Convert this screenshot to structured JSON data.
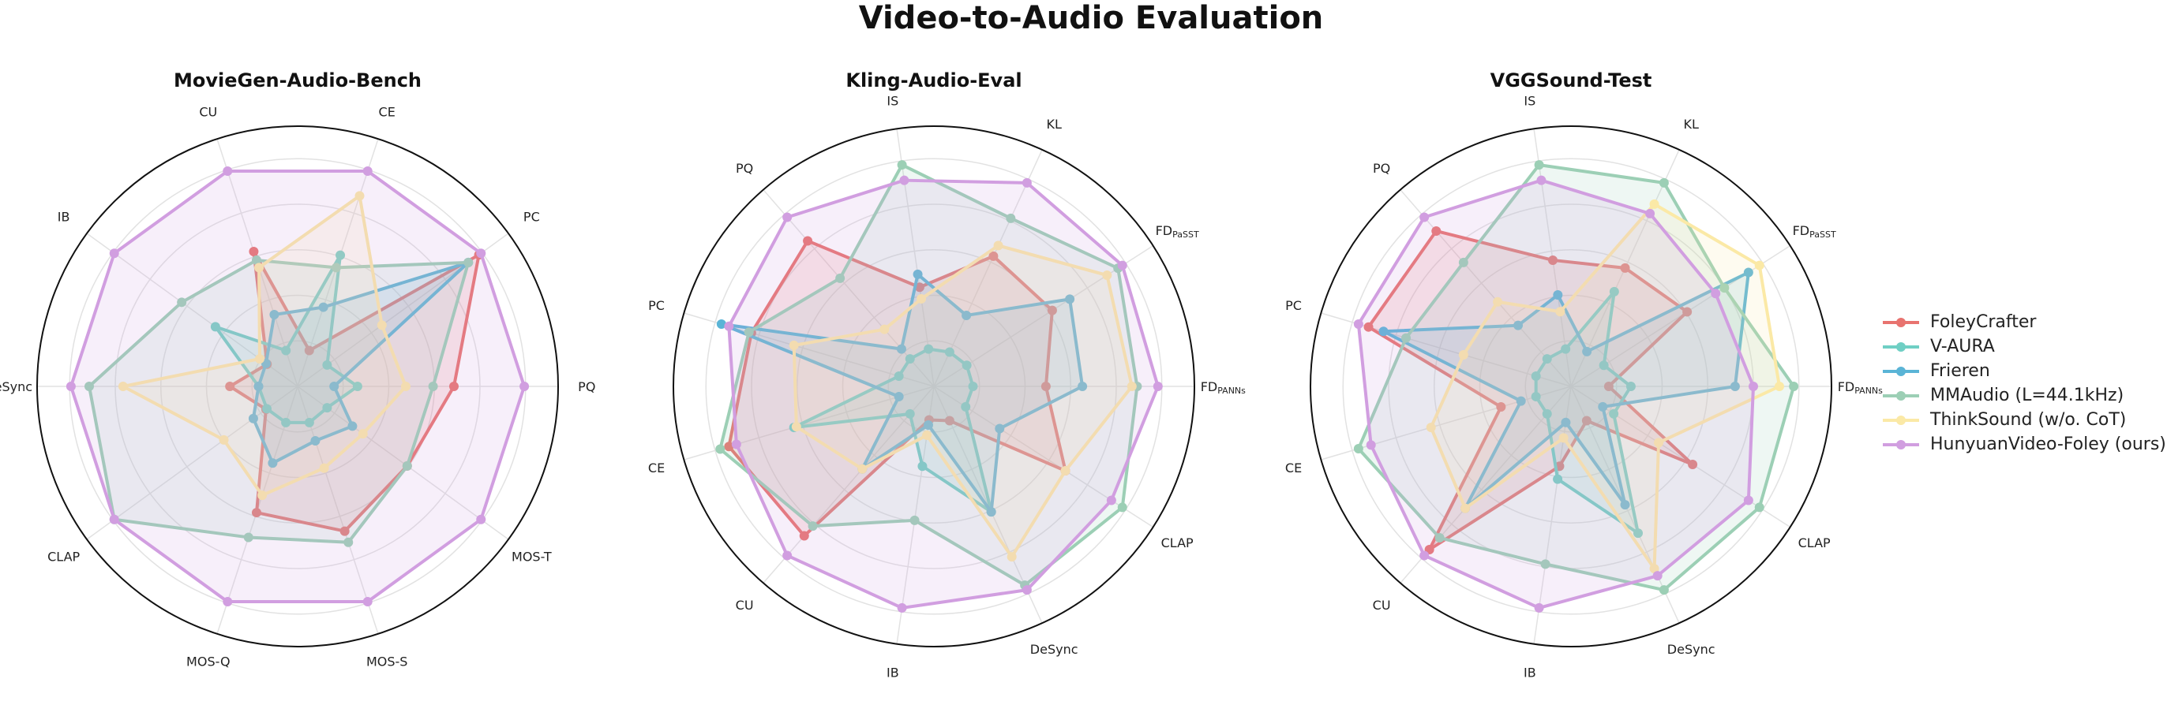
{
  "title": "Video-to-Audio Evaluation",
  "legend": [
    {
      "name": "FoleyCrafter",
      "color": "#e8736f"
    },
    {
      "name": "V-AURA",
      "color": "#6fcfc4"
    },
    {
      "name": "Frieren",
      "color": "#5ab4d6"
    },
    {
      "name": "MMAudio (L=44.1kHz)",
      "color": "#9ccfb5"
    },
    {
      "name": "ThinkSound (w/o. CoT)",
      "color": "#fbe9a6"
    },
    {
      "name": "HunyuanVideo-Foley (ours)",
      "color": "#d19ee0"
    }
  ],
  "chart_data": [
    {
      "type": "radar",
      "title": "MovieGen-Audio-Bench",
      "axes": [
        {
          "text": "PQ"
        },
        {
          "text": "PC"
        },
        {
          "text": "CE"
        },
        {
          "text": "CU"
        },
        {
          "text": "IB"
        },
        {
          "text": "DeSync"
        },
        {
          "text": "CLAP"
        },
        {
          "text": "MOS-Q"
        },
        {
          "text": "MOS-S"
        },
        {
          "text": "MOS-T"
        }
      ],
      "rlim": [
        0,
        1
      ],
      "grid": true,
      "series": [
        {
          "name": "FoleyCrafter",
          "values": [
            0.6,
            0.86,
            0.145,
            0.545,
            0.145,
            0.26,
            0.15,
            0.51,
            0.585,
            0.52
          ]
        },
        {
          "name": "V-AURA",
          "values": [
            0.23,
            0.14,
            0.53,
            0.145,
            0.39,
            0.15,
            0.146,
            0.146,
            0.146,
            0.14
          ]
        },
        {
          "name": "Frieren",
          "values": [
            0.14,
            0.81,
            0.32,
            0.29,
            0.15,
            0.15,
            0.21,
            0.31,
            0.22,
            0.26
          ]
        },
        {
          "name": "MMAudio (L=44.1kHz)",
          "values": [
            0.52,
            0.81,
            0.48,
            0.51,
            0.55,
            0.8,
            0.87,
            0.61,
            0.63,
            0.52
          ]
        },
        {
          "name": "ThinkSound (w/o. CoT)",
          "values": [
            0.415,
            0.4,
            0.77,
            0.48,
            0.18,
            0.67,
            0.35,
            0.44,
            0.33,
            0.31
          ]
        },
        {
          "name": "HunyuanVideo-Foley (ours)",
          "values": [
            0.87,
            0.87,
            0.87,
            0.87,
            0.87,
            0.87,
            0.87,
            0.87,
            0.87,
            0.87
          ]
        }
      ]
    },
    {
      "type": "radar",
      "title": "Kling-Audio-Eval",
      "axes": [
        {
          "text": "FD",
          "sub": "PANNs"
        },
        {
          "text": "FD",
          "sub": "PaSST"
        },
        {
          "text": "KL"
        },
        {
          "text": "IS"
        },
        {
          "text": "PQ"
        },
        {
          "text": "PC"
        },
        {
          "text": "CE"
        },
        {
          "text": "CU"
        },
        {
          "text": "IB"
        },
        {
          "text": "DeSync"
        },
        {
          "text": "CLAP"
        }
      ],
      "rlim": [
        0,
        1
      ],
      "grid": true,
      "series": [
        {
          "name": "FoleyCrafter",
          "values": [
            0.43,
            0.54,
            0.55,
            0.385,
            0.74,
            0.73,
            0.82,
            0.76,
            0.13,
            0.145,
            0.6
          ]
        },
        {
          "name": "V-AURA",
          "values": [
            0.15,
            0.15,
            0.145,
            0.145,
            0.14,
            0.14,
            0.56,
            0.14,
            0.31,
            0.53,
            0.145
          ]
        },
        {
          "name": "Frieren",
          "values": [
            0.57,
            0.62,
            0.3,
            0.435,
            0.19,
            0.85,
            0.14,
            0.42,
            0.15,
            0.53,
            0.3
          ]
        },
        {
          "name": "MMAudio (L=44.1kHz)",
          "values": [
            0.78,
            0.84,
            0.71,
            0.86,
            0.55,
            0.74,
            0.855,
            0.71,
            0.52,
            0.84,
            0.86
          ]
        },
        {
          "name": "ThinkSound (w/o. CoT)",
          "values": [
            0.76,
            0.79,
            0.595,
            0.34,
            0.29,
            0.56,
            0.55,
            0.42,
            0.19,
            0.72,
            0.6
          ]
        },
        {
          "name": "HunyuanVideo-Foley (ours)",
          "values": [
            0.86,
            0.86,
            0.86,
            0.8,
            0.86,
            0.82,
            0.79,
            0.86,
            0.86,
            0.86,
            0.81
          ]
        }
      ]
    },
    {
      "type": "radar",
      "title": "VGGSound-Test",
      "axes": [
        {
          "text": "FD",
          "sub": "PANNs"
        },
        {
          "text": "FD",
          "sub": "PaSST"
        },
        {
          "text": "KL"
        },
        {
          "text": "IS"
        },
        {
          "text": "PQ"
        },
        {
          "text": "PC"
        },
        {
          "text": "CE"
        },
        {
          "text": "CU"
        },
        {
          "text": "IB"
        },
        {
          "text": "DeSync"
        },
        {
          "text": "CLAP"
        }
      ],
      "rlim": [
        0,
        1
      ],
      "grid": true,
      "series": [
        {
          "name": "FoleyCrafter",
          "values": [
            0.145,
            0.53,
            0.5,
            0.49,
            0.79,
            0.81,
            0.28,
            0.83,
            0.31,
            0.145,
            0.555
          ]
        },
        {
          "name": "V-AURA",
          "values": [
            0.23,
            0.15,
            0.4,
            0.145,
            0.14,
            0.14,
            0.14,
            0.14,
            0.36,
            0.62,
            0.195
          ]
        },
        {
          "name": "Frieren",
          "values": [
            0.63,
            0.81,
            0.147,
            0.355,
            0.31,
            0.75,
            0.2,
            0.62,
            0.14,
            0.5,
            0.145
          ]
        },
        {
          "name": "MMAudio (L=44.1kHz)",
          "values": [
            0.855,
            0.7,
            0.86,
            0.86,
            0.63,
            0.66,
            0.85,
            0.77,
            0.69,
            0.86,
            0.86
          ]
        },
        {
          "name": "ThinkSound (w/o. CoT)",
          "values": [
            0.8,
            0.86,
            0.77,
            0.29,
            0.43,
            0.43,
            0.56,
            0.62,
            0.2,
            0.77,
            0.4
          ]
        },
        {
          "name": "HunyuanVideo-Foley (ours)",
          "values": [
            0.7,
            0.66,
            0.73,
            0.8,
            0.86,
            0.85,
            0.8,
            0.86,
            0.86,
            0.8,
            0.81
          ]
        }
      ]
    }
  ]
}
